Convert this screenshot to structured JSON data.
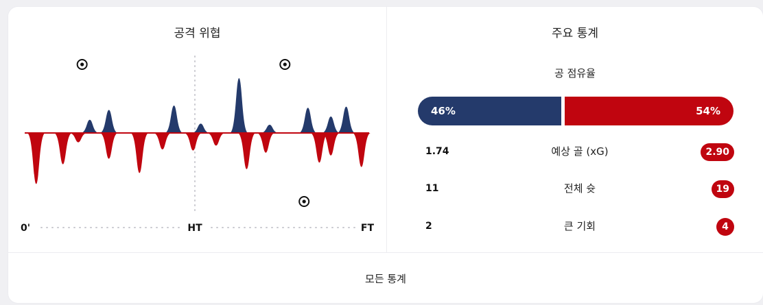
{
  "attack_panel": {
    "title": "공격 위협",
    "timeline": {
      "start": "0'",
      "half": "HT",
      "end": "FT"
    },
    "goal_marks": [
      {
        "team": "home",
        "minute": 15
      },
      {
        "team": "home",
        "minute": 68
      },
      {
        "team": "away",
        "minute": 73
      }
    ]
  },
  "chart_data": {
    "type": "area",
    "x_range": [
      0,
      90
    ],
    "y_range": [
      -1,
      1
    ],
    "colors": {
      "home": "#243a6b",
      "away": "#c0050f"
    },
    "series": [
      {
        "team": "home",
        "x": [
          17,
          22,
          39,
          46,
          56,
          64,
          74,
          80,
          84
        ],
        "values": [
          0.24,
          0.42,
          0.5,
          0.17,
          1.0,
          0.15,
          0.46,
          0.3,
          0.48
        ]
      },
      {
        "team": "away",
        "x": [
          3,
          10,
          14,
          22,
          30,
          36,
          44,
          50,
          58,
          63,
          77,
          80,
          88
        ],
        "values": [
          -0.93,
          -0.57,
          -0.17,
          -0.47,
          -0.73,
          -0.3,
          -0.32,
          -0.23,
          -0.66,
          -0.36,
          -0.54,
          -0.41,
          -0.62
        ]
      }
    ]
  },
  "stats_panel": {
    "title": "주요 통계",
    "possession": {
      "label": "공 점유율",
      "home": "46%",
      "away": "54%",
      "home_value": 46,
      "away_value": 54
    },
    "rows": [
      {
        "label": "예상 골 (xG)",
        "home": "1.74",
        "away": "2.90"
      },
      {
        "label": "전체 슛",
        "home": "11",
        "away": "19"
      },
      {
        "label": "큰 기회",
        "home": "2",
        "away": "4"
      }
    ]
  },
  "footer": {
    "label": "모든 통계"
  }
}
